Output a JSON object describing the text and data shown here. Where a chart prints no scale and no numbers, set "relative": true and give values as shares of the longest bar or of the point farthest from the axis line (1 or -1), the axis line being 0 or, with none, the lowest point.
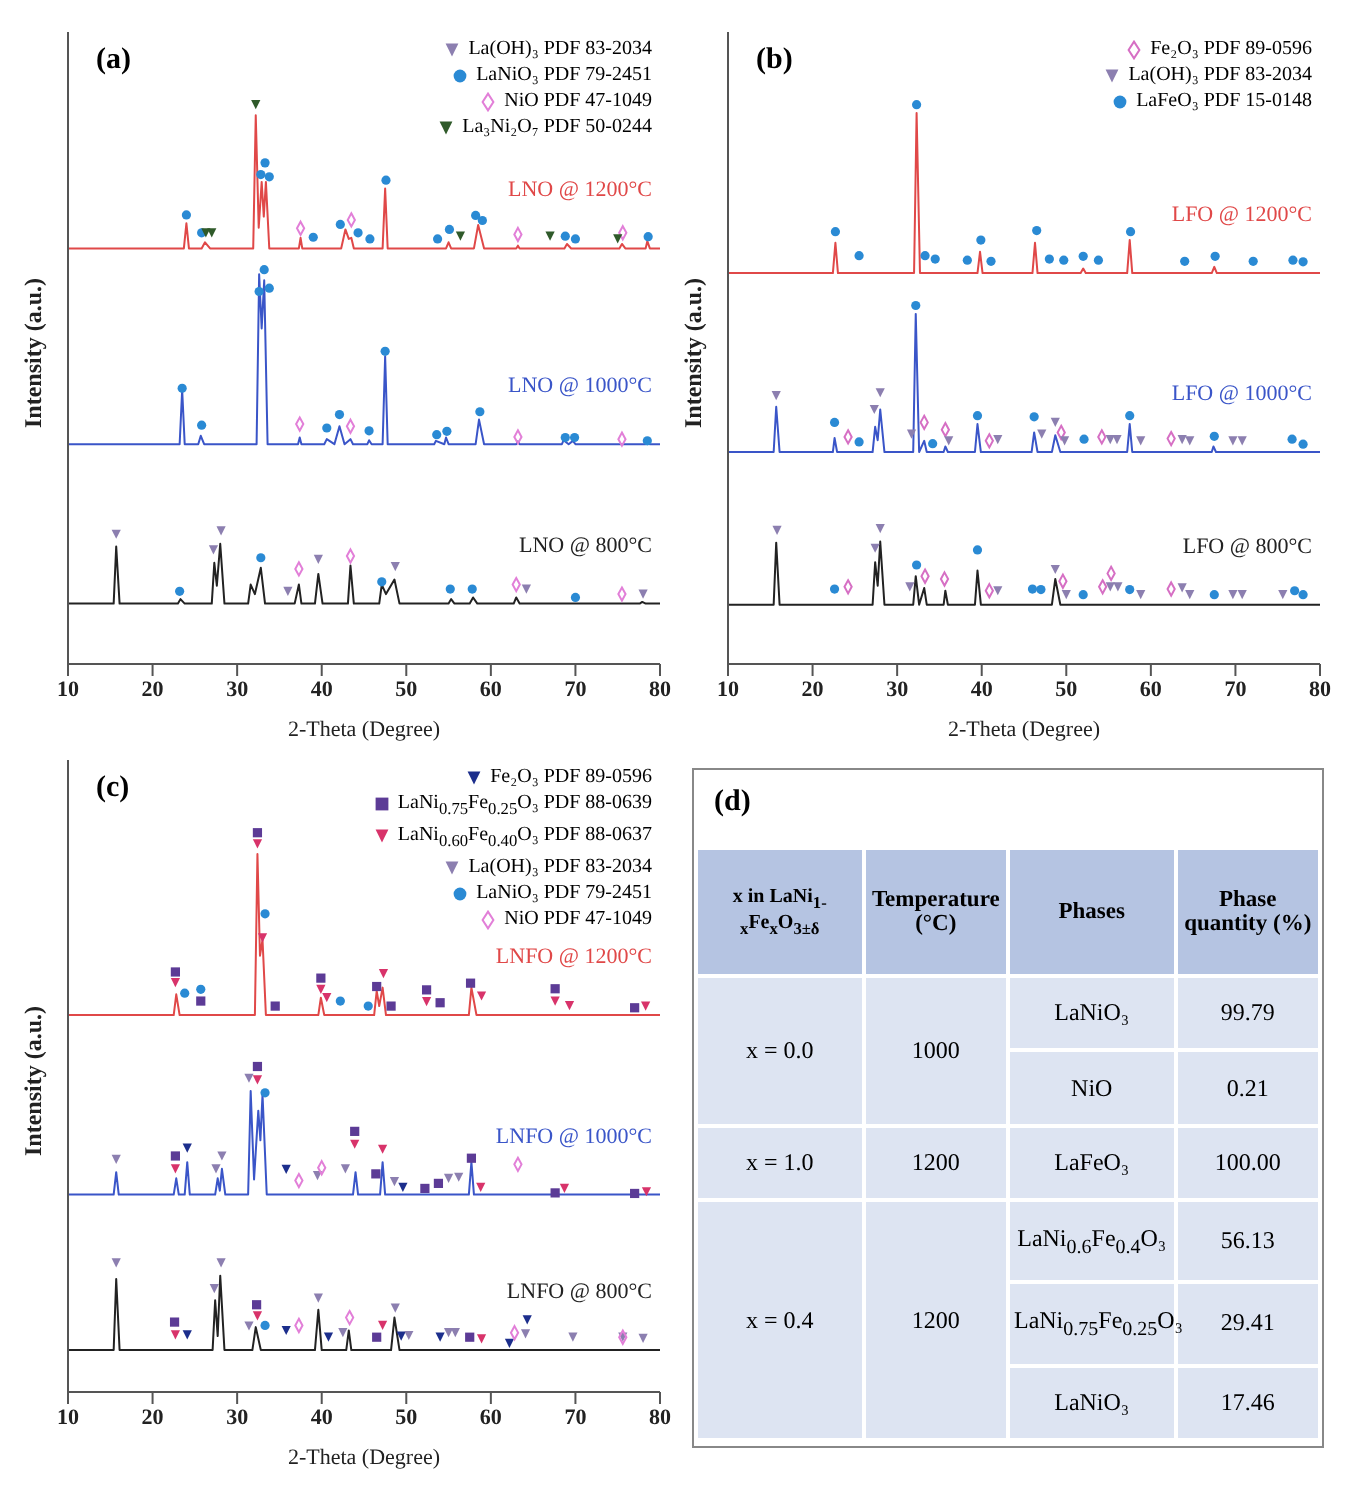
{
  "chart_data": [
    {
      "type": "line",
      "title": "(a)",
      "xlabel": "2-Theta (Degree)",
      "ylabel": "Intensity (a.u.)",
      "relative": true,
      "xlim": [
        10,
        80
      ],
      "xticks": [
        10,
        20,
        30,
        40,
        50,
        60,
        70,
        80
      ],
      "legend": "top right",
      "series": [
        {
          "type": "line",
          "name": "LNO @ 1200°C",
          "color": "#e04848",
          "x": [
            10,
            23.7,
            24,
            24.3,
            25.8,
            26.2,
            26.8,
            31.9,
            32.2,
            32.55,
            32.9,
            33.15,
            33.4,
            33.8,
            37.3,
            37.5,
            37.7,
            42.3,
            42.8,
            43.2,
            43.5,
            43.8,
            47.2,
            47.5,
            47.8,
            54.7,
            55,
            55.3,
            58,
            58.5,
            59.2,
            63,
            63.2,
            63.4,
            68.7,
            69,
            69.5,
            75.2,
            75.5,
            75.9,
            78.3,
            78.5,
            78.8,
            80
          ],
          "values": [
            0.743,
            0.743,
            0.788,
            0.743,
            0.743,
            0.754,
            0.743,
            0.743,
            0.981,
            0.78,
            0.862,
            0.8,
            0.862,
            0.743,
            0.743,
            0.762,
            0.743,
            0.743,
            0.777,
            0.76,
            0.762,
            0.743,
            0.743,
            0.85,
            0.743,
            0.743,
            0.754,
            0.743,
            0.743,
            0.785,
            0.743,
            0.743,
            0.748,
            0.743,
            0.743,
            0.751,
            0.743,
            0.743,
            0.751,
            0.743,
            0.743,
            0.756,
            0.743,
            0.743
          ]
        },
        {
          "type": "line",
          "name": "LNO @ 1000°C",
          "color": "#3a55c8",
          "x": [
            10,
            23.2,
            23.5,
            23.8,
            25.4,
            25.7,
            26.1,
            32.3,
            32.6,
            32.9,
            33.2,
            33.6,
            37.2,
            37.4,
            37.6,
            40.3,
            40.6,
            41.5,
            42.1,
            42.7,
            43.4,
            43.7,
            45.4,
            45.6,
            45.9,
            47.2,
            47.5,
            47.8,
            53.3,
            53.5,
            54.5,
            54.7,
            55,
            58.2,
            58.6,
            59.2,
            63,
            63.2,
            63.4,
            68.4,
            68.6,
            69.2,
            69.7,
            70,
            78.3,
            78.5,
            78.8,
            80
          ],
          "values": [
            0.393,
            0.393,
            0.49,
            0.393,
            0.393,
            0.408,
            0.393,
            0.393,
            0.697,
            0.6,
            0.686,
            0.393,
            0.393,
            0.405,
            0.393,
            0.393,
            0.402,
            0.393,
            0.425,
            0.393,
            0.402,
            0.393,
            0.393,
            0.4,
            0.393,
            0.393,
            0.55,
            0.393,
            0.393,
            0.399,
            0.393,
            0.405,
            0.393,
            0.393,
            0.437,
            0.393,
            0.393,
            0.398,
            0.393,
            0.393,
            0.4,
            0.393,
            0.399,
            0.393,
            0.393,
            0.397,
            0.393,
            0.393
          ]
        },
        {
          "type": "line",
          "name": "LNO @ 800°C",
          "color": "#222222",
          "x": [
            10,
            15.4,
            15.7,
            16.1,
            23,
            23.3,
            23.8,
            27,
            27.3,
            27.6,
            28,
            28.5,
            31.3,
            31.6,
            32.1,
            32.8,
            33.3,
            36.8,
            37.3,
            37.6,
            39.2,
            39.6,
            40.1,
            43.1,
            43.4,
            43.8,
            46.8,
            47.1,
            47.6,
            48.6,
            49.2,
            55,
            55.3,
            55.7,
            57.5,
            57.9,
            58.4,
            62.7,
            63,
            63.4,
            77.6,
            77.9,
            78.3,
            80
          ],
          "values": [
            0.108,
            0.108,
            0.21,
            0.108,
            0.108,
            0.116,
            0.108,
            0.108,
            0.181,
            0.14,
            0.215,
            0.108,
            0.108,
            0.142,
            0.125,
            0.172,
            0.108,
            0.108,
            0.142,
            0.108,
            0.108,
            0.161,
            0.108,
            0.108,
            0.176,
            0.108,
            0.108,
            0.142,
            0.125,
            0.151,
            0.108,
            0.108,
            0.116,
            0.108,
            0.108,
            0.119,
            0.108,
            0.108,
            0.119,
            0.108,
            0.108,
            0.111,
            0.108,
            0.108
          ]
        },
        {
          "type": "scatter",
          "name": "La(OH)₃ PDF 83-2034",
          "color": "#8c7fb0",
          "marker": "triangle",
          "x": [
            15.7,
            27.2,
            28.1,
            36,
            39.6,
            48.7,
            64.2,
            78
          ],
          "values": [
            0.232,
            0.204,
            0.238,
            0.13,
            0.187,
            0.174,
            0.134,
            0.125
          ]
        },
        {
          "type": "scatter",
          "name": "LaNiO₃ PDF 79-2451",
          "color": "#2a8ad4",
          "marker": "circle",
          "x": [
            24,
            25.8,
            32.8,
            33.3,
            33.8,
            39,
            42.2,
            44.3,
            45.7,
            47.6,
            53.7,
            55.1,
            58.2,
            59,
            68.8,
            70,
            78.6,
            23.5,
            25.8,
            32.6,
            33.2,
            33.8,
            40.6,
            42.1,
            45.6,
            47.5,
            53.6,
            54.8,
            58.7,
            68.8,
            69.9,
            78.5,
            23.2,
            32.8,
            47.1,
            55.2,
            57.8,
            70
          ],
          "values": [
            0.803,
            0.771,
            0.875,
            0.896,
            0.871,
            0.763,
            0.786,
            0.771,
            0.76,
            0.865,
            0.76,
            0.777,
            0.802,
            0.793,
            0.765,
            0.76,
            0.764,
            0.493,
            0.427,
            0.666,
            0.705,
            0.672,
            0.422,
            0.446,
            0.417,
            0.559,
            0.41,
            0.416,
            0.451,
            0.405,
            0.405,
            0.399,
            0.13,
            0.19,
            0.147,
            0.134,
            0.134,
            0.119
          ]
        },
        {
          "type": "scatter",
          "name": "NiO PDF 47-1049",
          "color": "#e27fd8",
          "marker": "diamond",
          "x": [
            37.5,
            43.5,
            63.2,
            75.6,
            37.4,
            43.4,
            63.2,
            75.5,
            37.3,
            43.4,
            63,
            75.5
          ],
          "values": [
            0.779,
            0.794,
            0.768,
            0.771,
            0.429,
            0.425,
            0.406,
            0.402,
            0.17,
            0.193,
            0.142,
            0.125
          ]
        },
        {
          "type": "scatter",
          "name": "La₃Ni₂O₇ PDF 50-0244",
          "color": "#2f5a2a",
          "marker": "triangle",
          "x": [
            26.3,
            27,
            32.2,
            56.4,
            67,
            75
          ],
          "values": [
            0.771,
            0.771,
            1,
            0.765,
            0.765,
            0.76
          ]
        }
      ]
    },
    {
      "type": "line",
      "title": "(b)",
      "xlabel": "2-Theta (Degree)",
      "ylabel": "Intensity (a.u.)",
      "relative": true,
      "xlim": [
        10,
        80
      ],
      "xticks": [
        10,
        20,
        30,
        40,
        50,
        60,
        70,
        80
      ],
      "legend": "top right",
      "series": [
        {
          "type": "line",
          "name": "LFO @ 1200°C",
          "color": "#e04848",
          "x": [
            10,
            22.4,
            22.7,
            23,
            32,
            32.3,
            32.7,
            39.5,
            39.8,
            40.1,
            46,
            46.3,
            46.6,
            51.7,
            52,
            52.3,
            57.2,
            57.5,
            57.8,
            67.2,
            67.5,
            67.8,
            80
          ],
          "values": [
            0.699,
            0.699,
            0.753,
            0.699,
            0.699,
            0.985,
            0.699,
            0.699,
            0.737,
            0.699,
            0.699,
            0.753,
            0.699,
            0.699,
            0.707,
            0.699,
            0.699,
            0.758,
            0.699,
            0.699,
            0.71,
            0.699,
            0.699
          ]
        },
        {
          "type": "line",
          "name": "LFO @ 1000°C",
          "color": "#3a55c8",
          "x": [
            10,
            15.4,
            15.7,
            16.1,
            22.4,
            22.6,
            22.9,
            27.1,
            27.4,
            27.7,
            28,
            28.5,
            31.9,
            32.2,
            32.6,
            33.2,
            33.5,
            35.5,
            35.7,
            36,
            39.2,
            39.5,
            39.9,
            45.9,
            46.2,
            46.6,
            48.3,
            48.7,
            49.3,
            57.2,
            57.5,
            57.8,
            67.2,
            67.4,
            67.7,
            80
          ],
          "values": [
            0.379,
            0.379,
            0.46,
            0.379,
            0.379,
            0.404,
            0.379,
            0.379,
            0.424,
            0.4,
            0.455,
            0.379,
            0.379,
            0.626,
            0.379,
            0.399,
            0.379,
            0.379,
            0.389,
            0.379,
            0.379,
            0.429,
            0.379,
            0.379,
            0.414,
            0.379,
            0.379,
            0.409,
            0.379,
            0.379,
            0.429,
            0.379,
            0.379,
            0.389,
            0.379,
            0.379
          ]
        },
        {
          "type": "line",
          "name": "LFO @ 800°C",
          "color": "#222222",
          "x": [
            10,
            15.4,
            15.7,
            16.1,
            27.1,
            27.4,
            27.7,
            28,
            28.5,
            31.9,
            32.2,
            32.6,
            33.2,
            33.5,
            35.5,
            35.7,
            36,
            39.2,
            39.5,
            39.9,
            48.3,
            48.7,
            49.3,
            80
          ],
          "values": [
            0.106,
            0.106,
            0.217,
            0.106,
            0.106,
            0.182,
            0.14,
            0.219,
            0.106,
            0.106,
            0.157,
            0.106,
            0.136,
            0.106,
            0.106,
            0.131,
            0.106,
            0.106,
            0.167,
            0.106,
            0.106,
            0.152,
            0.106,
            0.106
          ]
        },
        {
          "type": "scatter",
          "name": "Fe₂O₃ PDF 89-0596",
          "color": "#d66fc4",
          "marker": "diamond",
          "x": [
            24.2,
            33.2,
            35.7,
            40.9,
            49.4,
            54.2,
            62.4,
            24.2,
            33.3,
            35.6,
            40.9,
            49.6,
            54.3,
            55.3,
            62.4
          ],
          "values": [
            0.406,
            0.432,
            0.419,
            0.399,
            0.414,
            0.406,
            0.403,
            0.138,
            0.157,
            0.152,
            0.131,
            0.148,
            0.138,
            0.162,
            0.134
          ]
        },
        {
          "type": "scatter",
          "name": "La(OH)₃ PDF 83-2034",
          "color": "#8c7fb0",
          "marker": "triangle",
          "x": [
            15.7,
            27.3,
            28,
            31.7,
            36.1,
            41.9,
            47.1,
            48.7,
            49.8,
            55.2,
            56,
            58.8,
            63.7,
            64.6,
            69.7,
            70.8,
            15.8,
            27.4,
            28,
            31.5,
            41.9,
            48.7,
            50,
            55.2,
            56.1,
            58.8,
            63.7,
            64.6,
            69.7,
            70.8,
            75.6
          ],
          "values": [
            0.48,
            0.455,
            0.485,
            0.411,
            0.399,
            0.401,
            0.411,
            0.432,
            0.399,
            0.401,
            0.401,
            0.399,
            0.401,
            0.399,
            0.399,
            0.399,
            0.239,
            0.207,
            0.242,
            0.138,
            0.131,
            0.169,
            0.124,
            0.138,
            0.138,
            0.124,
            0.136,
            0.124,
            0.124,
            0.124,
            0.124
          ]
        },
        {
          "type": "scatter",
          "name": "LaFeO₃ PDF 15-0148",
          "color": "#2a8ad4",
          "marker": "circle",
          "x": [
            22.7,
            25.5,
            32.3,
            33.3,
            34.5,
            38.3,
            39.9,
            41.1,
            46.5,
            48,
            49.7,
            52,
            53.8,
            57.6,
            64,
            67.6,
            72.1,
            76.8,
            78,
            22.6,
            25.5,
            32.2,
            34.2,
            39.5,
            46.2,
            52.1,
            57.5,
            67.5,
            76.7,
            78,
            22.6,
            32.3,
            39.5,
            46,
            47,
            52,
            57.5,
            67.5,
            77,
            78
          ],
          "values": [
            0.773,
            0.73,
            1,
            0.73,
            0.724,
            0.722,
            0.758,
            0.72,
            0.775,
            0.724,
            0.722,
            0.729,
            0.722,
            0.773,
            0.72,
            0.729,
            0.72,
            0.722,
            0.719,
            0.432,
            0.397,
            0.641,
            0.394,
            0.444,
            0.442,
            0.402,
            0.444,
            0.407,
            0.402,
            0.393,
            0.134,
            0.177,
            0.204,
            0.134,
            0.133,
            0.124,
            0.133,
            0.124,
            0.131,
            0.124
          ]
        }
      ]
    },
    {
      "type": "line",
      "title": "(c)",
      "xlabel": "2-Theta (Degree)",
      "ylabel": "Intensity (a.u.)",
      "relative": true,
      "xlim": [
        10,
        80
      ],
      "xticks": [
        10,
        20,
        30,
        40,
        50,
        60,
        70,
        80
      ],
      "legend": "top right",
      "series": [
        {
          "type": "line",
          "name": "LNFO @ 1200°C",
          "color": "#e04848",
          "x": [
            10,
            22.5,
            22.8,
            23.2,
            32.1,
            32.4,
            32.7,
            33,
            33.4,
            39.6,
            39.9,
            40.3,
            46.2,
            46.5,
            46.8,
            47.2,
            47.6,
            57.4,
            57.7,
            58.3,
            80
          ],
          "values": [
            0.674,
            0.674,
            0.711,
            0.674,
            0.674,
            0.962,
            0.78,
            0.809,
            0.674,
            0.674,
            0.705,
            0.674,
            0.674,
            0.717,
            0.69,
            0.723,
            0.674,
            0.674,
            0.723,
            0.674,
            0.674
          ]
        },
        {
          "type": "line",
          "name": "LNFO @ 1000°C",
          "color": "#3a55c8",
          "x": [
            10,
            15.4,
            15.7,
            16,
            22.5,
            22.8,
            23.1,
            23.8,
            24.1,
            24.4,
            27.4,
            27.7,
            27.95,
            28.2,
            28.6,
            31.3,
            31.6,
            32,
            32.5,
            32.75,
            33,
            33.5,
            43.7,
            44,
            44.3,
            46.9,
            47.2,
            47.5,
            57.4,
            57.7,
            58,
            80
          ],
          "values": [
            0.353,
            0.353,
            0.393,
            0.353,
            0.353,
            0.382,
            0.353,
            0.353,
            0.411,
            0.353,
            0.353,
            0.382,
            0.36,
            0.399,
            0.353,
            0.353,
            0.538,
            0.38,
            0.503,
            0.45,
            0.532,
            0.353,
            0.353,
            0.393,
            0.353,
            0.353,
            0.411,
            0.353,
            0.353,
            0.411,
            0.353,
            0.353
          ]
        },
        {
          "type": "line",
          "name": "LNFO @ 800°C",
          "color": "#222222",
          "x": [
            10,
            15.4,
            15.7,
            16.1,
            27.1,
            27.4,
            27.7,
            28,
            28.5,
            31.8,
            32.2,
            32.8,
            39.2,
            39.6,
            40,
            42.9,
            43.2,
            43.5,
            48.2,
            48.6,
            49.2,
            80
          ],
          "values": [
            0.075,
            0.075,
            0.202,
            0.075,
            0.075,
            0.164,
            0.1,
            0.208,
            0.075,
            0.075,
            0.116,
            0.075,
            0.075,
            0.147,
            0.075,
            0.075,
            0.11,
            0.075,
            0.075,
            0.133,
            0.075,
            0.075
          ]
        },
        {
          "type": "scatter",
          "name": "Fe₂O₃ PDF 89-0596",
          "color": "#1c2e8c",
          "marker": "triangle",
          "x": [
            24.1,
            35.8,
            49.6,
            24.1,
            35.8,
            40.8,
            49.4,
            54,
            62.2,
            64.3
          ],
          "values": [
            0.436,
            0.398,
            0.366,
            0.102,
            0.11,
            0.098,
            0.1,
            0.098,
            0.087,
            0.129
          ]
        },
        {
          "type": "scatter",
          "name": "LaNi$_{0.75}$Fe$_{0.25}$O₃ PDF 88-0639",
          "color": "#5c3b96",
          "marker": "square",
          "x": [
            22.7,
            25.7,
            32.4,
            34.5,
            39.9,
            46.5,
            48.2,
            52.4,
            54,
            57.6,
            67.6,
            77,
            22.7,
            32.4,
            43.9,
            46.4,
            52.2,
            53.8,
            57.7,
            67.6,
            77,
            22.6,
            32.3,
            46.5,
            57.5
          ],
          "values": [
            0.751,
            0.699,
            1,
            0.69,
            0.74,
            0.725,
            0.69,
            0.719,
            0.696,
            0.731,
            0.721,
            0.687,
            0.422,
            0.582,
            0.466,
            0.39,
            0.364,
            0.373,
            0.418,
            0.356,
            0.355,
            0.125,
            0.156,
            0.098,
            0.098
          ]
        },
        {
          "type": "scatter",
          "name": "LaNi$_{0.60}$Fe$_{0.40}$O₃ PDF 88-0637",
          "color": "#d8336a",
          "marker": "triangle",
          "x": [
            22.7,
            32.4,
            33,
            39.9,
            40.6,
            47.3,
            52.4,
            58.9,
            67.6,
            69.3,
            78.3,
            22.7,
            32.4,
            43.9,
            47.2,
            58.8,
            68.7,
            78.4,
            22.7,
            32.4,
            47.2,
            58.9
          ],
          "values": [
            0.732,
            0.98,
            0.812,
            0.72,
            0.705,
            0.748,
            0.698,
            0.708,
            0.699,
            0.691,
            0.69,
            0.399,
            0.558,
            0.443,
            0.434,
            0.366,
            0.364,
            0.358,
            0.102,
            0.136,
            0.119,
            0.095
          ]
        },
        {
          "type": "scatter",
          "name": "La(OH)₃ PDF 83-2034",
          "color": "#8c7fb0",
          "marker": "triangle",
          "x": [
            15.7,
            27.5,
            28.2,
            31.4,
            39.5,
            42.8,
            48.6,
            55,
            56.2,
            15.7,
            27.3,
            28.1,
            31.4,
            39.6,
            42.5,
            48.7,
            50.3,
            55,
            55.8,
            64.1,
            69.7,
            75.6,
            78
          ],
          "values": [
            0.416,
            0.399,
            0.422,
            0.561,
            0.387,
            0.399,
            0.376,
            0.382,
            0.384,
            0.231,
            0.185,
            0.231,
            0.118,
            0.168,
            0.106,
            0.15,
            0.101,
            0.106,
            0.106,
            0.104,
            0.098,
            0.098,
            0.096
          ]
        },
        {
          "type": "scatter",
          "name": "LaNiO₃ PDF 79-2451",
          "color": "#2a8ad4",
          "marker": "circle",
          "x": [
            23.8,
            25.7,
            33.3,
            42.2,
            45.5,
            33.3,
            33.3
          ],
          "values": [
            0.713,
            0.72,
            0.855,
            0.699,
            0.69,
            0.535,
            0.119
          ]
        },
        {
          "type": "scatter",
          "name": "NiO PDF 47-1049",
          "color": "#e27fd8",
          "marker": "diamond",
          "x": [
            37.3,
            40,
            63.2,
            37.3,
            43.3,
            62.8,
            75.6
          ],
          "values": [
            0.378,
            0.401,
            0.407,
            0.119,
            0.133,
            0.106,
            0.098
          ]
        }
      ]
    },
    {
      "type": "other",
      "title": "(d)",
      "categories": [
        "x in LaNi$_{1-x}$Fe$_{x}$O$_{3±δ}$",
        "Temperature (°C)",
        "Phases",
        "Phase quantity (%)"
      ],
      "cell_labels": [
        [
          "x = 0.0",
          "1000",
          "LaNiO₃",
          "99.79"
        ],
        [
          null,
          null,
          "NiO",
          "0.21"
        ],
        [
          "x = 1.0",
          "1200",
          "LaFeO₃",
          "100.00"
        ],
        [
          "x = 0.4",
          "1200",
          "LaNi$_{0.6}$Fe$_{0.4}$O₃",
          "56.13"
        ],
        [
          null,
          null,
          "LaNi$_{0.75}$Fe$_{0.25}$O₃",
          "29.41"
        ],
        [
          null,
          null,
          "LaNiO₃",
          "17.46"
        ]
      ]
    }
  ]
}
